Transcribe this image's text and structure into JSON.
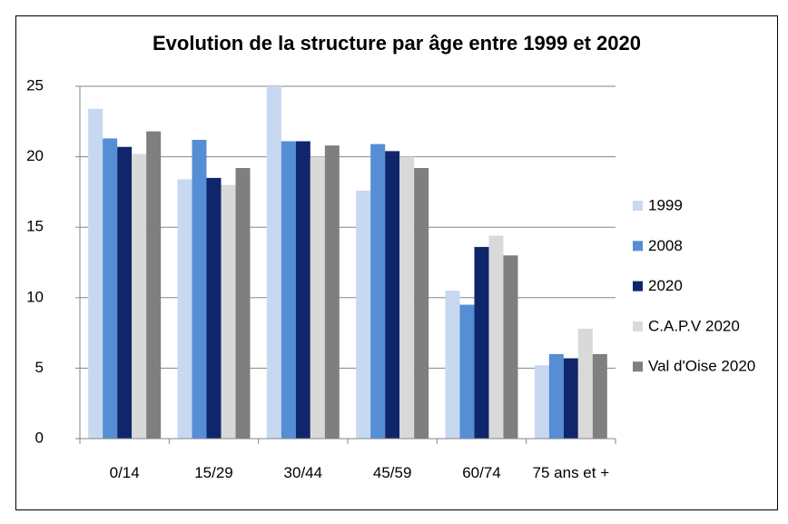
{
  "chart_data": {
    "type": "bar",
    "title": "Evolution de la structure par âge entre 1999 et 2020",
    "categories": [
      "0/14",
      "15/29",
      "30/44",
      "45/59",
      "60/74",
      "75 ans et +"
    ],
    "series": [
      {
        "name": "1999",
        "color": "#c6d9f1",
        "values": [
          23.4,
          18.4,
          25,
          17.6,
          10.5,
          5.2
        ]
      },
      {
        "name": "2008",
        "color": "#558ed5",
        "values": [
          21.3,
          21.2,
          21.1,
          20.9,
          9.5,
          6.0
        ]
      },
      {
        "name": "2020",
        "color": "#10266b",
        "values": [
          20.7,
          18.5,
          21.1,
          20.4,
          13.6,
          5.7
        ]
      },
      {
        "name": "C.A.P.V 2020",
        "color": "#d9d9d9",
        "values": [
          20.2,
          18.0,
          20.0,
          20.0,
          14.4,
          7.8
        ]
      },
      {
        "name": "Val d'Oise 2020",
        "color": "#7f7f7f",
        "values": [
          21.8,
          19.2,
          20.8,
          19.2,
          13.0,
          6.0
        ]
      }
    ],
    "ylim": [
      0,
      25
    ],
    "yticks": [
      0,
      5,
      10,
      15,
      20,
      25
    ],
    "grid": true,
    "legend": "right"
  }
}
